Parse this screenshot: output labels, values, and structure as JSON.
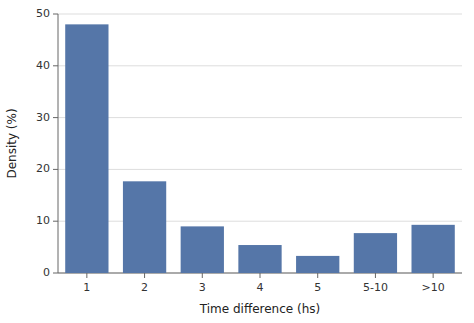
{
  "chart_data": {
    "type": "bar",
    "categories": [
      "1",
      "2",
      "3",
      "4",
      "5",
      "5-10",
      ">10"
    ],
    "values": [
      48,
      17.7,
      9.0,
      5.4,
      3.3,
      7.7,
      9.3
    ],
    "color": "#5576a8",
    "xlabel": "Time difference (hs)",
    "ylabel": "Density (%)",
    "ylim": [
      0,
      50
    ],
    "yticks": [
      0,
      10,
      20,
      30,
      40,
      50
    ],
    "grid": true
  }
}
